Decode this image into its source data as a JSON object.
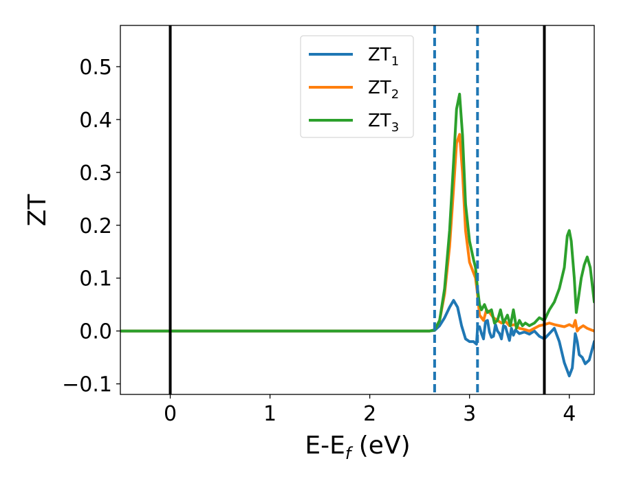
{
  "chart_data": {
    "type": "line",
    "xlabel": {
      "main": "E-E",
      "sub": "f",
      "unit": " (eV)"
    },
    "ylabel": "ZT",
    "xlim": [
      -0.5,
      4.25
    ],
    "ylim": [
      -0.12,
      0.578
    ],
    "xticks": [
      0,
      1,
      2,
      3,
      4
    ],
    "xtick_labels": [
      "0",
      "1",
      "2",
      "3",
      "4"
    ],
    "yticks": [
      -0.1,
      0.0,
      0.1,
      0.2,
      0.3,
      0.4,
      0.5
    ],
    "ytick_labels": [
      "−0.1",
      "0.0",
      "0.1",
      "0.2",
      "0.3",
      "0.4",
      "0.5"
    ],
    "legend_position": "top-center",
    "vlines": [
      {
        "x": 0.0,
        "style": "solid",
        "color": "#000000"
      },
      {
        "x": 3.75,
        "style": "solid",
        "color": "#000000"
      },
      {
        "x": 2.65,
        "style": "dashed",
        "color": "#1f77b4"
      },
      {
        "x": 3.08,
        "style": "dashed",
        "color": "#1f77b4"
      }
    ],
    "series": [
      {
        "name": "ZT",
        "sub": "1",
        "color": "#1f77b4",
        "x": [
          -0.5,
          2.6,
          2.65,
          2.7,
          2.75,
          2.8,
          2.84,
          2.88,
          2.92,
          2.96,
          3.0,
          3.04,
          3.07,
          3.08,
          3.1,
          3.12,
          3.14,
          3.16,
          3.18,
          3.2,
          3.22,
          3.24,
          3.26,
          3.28,
          3.3,
          3.32,
          3.34,
          3.36,
          3.38,
          3.4,
          3.42,
          3.44,
          3.46,
          3.5,
          3.55,
          3.6,
          3.65,
          3.7,
          3.75,
          3.8,
          3.85,
          3.9,
          3.95,
          4.0,
          4.03,
          4.06,
          4.08,
          4.1,
          4.13,
          4.16,
          4.2,
          4.25
        ],
        "y": [
          0.0,
          0.0,
          0.001,
          0.01,
          0.025,
          0.045,
          0.058,
          0.045,
          0.01,
          -0.015,
          -0.02,
          -0.02,
          -0.025,
          0.005,
          0.008,
          -0.005,
          -0.015,
          0.018,
          0.02,
          -0.002,
          -0.012,
          -0.01,
          0.012,
          0.0,
          -0.005,
          -0.015,
          0.01,
          0.008,
          -0.005,
          -0.018,
          0.005,
          -0.008,
          0.002,
          -0.005,
          -0.002,
          -0.006,
          0.0,
          -0.01,
          -0.015,
          -0.005,
          0.005,
          -0.02,
          -0.06,
          -0.085,
          -0.07,
          -0.005,
          -0.02,
          -0.045,
          -0.05,
          -0.062,
          -0.055,
          -0.02
        ]
      },
      {
        "name": "ZT",
        "sub": "2",
        "color": "#ff7f0e",
        "x": [
          -0.5,
          2.6,
          2.65,
          2.7,
          2.75,
          2.8,
          2.84,
          2.87,
          2.9,
          2.93,
          2.96,
          3.0,
          3.04,
          3.06,
          3.08,
          3.1,
          3.12,
          3.14,
          3.17,
          3.2,
          3.24,
          3.28,
          3.32,
          3.36,
          3.4,
          3.45,
          3.5,
          3.55,
          3.6,
          3.65,
          3.7,
          3.75,
          3.8,
          3.85,
          3.9,
          3.95,
          4.0,
          4.04,
          4.06,
          4.08,
          4.1,
          4.14,
          4.18,
          4.22,
          4.25
        ],
        "y": [
          0.0,
          0.0,
          0.002,
          0.02,
          0.07,
          0.16,
          0.27,
          0.355,
          0.372,
          0.3,
          0.19,
          0.13,
          0.11,
          0.1,
          0.07,
          0.03,
          0.025,
          0.02,
          0.04,
          0.035,
          0.025,
          0.02,
          0.015,
          0.018,
          0.01,
          0.012,
          0.005,
          0.003,
          0.0,
          0.005,
          0.01,
          0.012,
          0.015,
          0.012,
          0.01,
          0.008,
          0.012,
          0.008,
          0.02,
          0.0,
          0.005,
          0.01,
          0.005,
          0.002,
          0.0
        ]
      },
      {
        "name": "ZT",
        "sub": "3",
        "color": "#2ca02c",
        "x": [
          -0.5,
          2.6,
          2.65,
          2.7,
          2.75,
          2.8,
          2.84,
          2.87,
          2.9,
          2.93,
          2.96,
          3.0,
          3.04,
          3.06,
          3.08,
          3.1,
          3.12,
          3.15,
          3.18,
          3.22,
          3.25,
          3.28,
          3.31,
          3.34,
          3.38,
          3.41,
          3.44,
          3.47,
          3.5,
          3.53,
          3.56,
          3.6,
          3.65,
          3.7,
          3.75,
          3.8,
          3.85,
          3.9,
          3.95,
          3.98,
          4.0,
          4.02,
          4.05,
          4.07,
          4.09,
          4.12,
          4.15,
          4.18,
          4.21,
          4.25
        ],
        "y": [
          0.0,
          0.0,
          0.002,
          0.02,
          0.08,
          0.19,
          0.32,
          0.42,
          0.448,
          0.37,
          0.24,
          0.17,
          0.135,
          0.12,
          0.08,
          0.05,
          0.04,
          0.05,
          0.035,
          0.04,
          0.015,
          0.02,
          0.04,
          0.015,
          0.03,
          0.01,
          0.04,
          0.005,
          0.02,
          0.01,
          0.015,
          0.01,
          0.015,
          0.025,
          0.02,
          0.04,
          0.055,
          0.08,
          0.12,
          0.18,
          0.19,
          0.17,
          0.1,
          0.035,
          0.06,
          0.1,
          0.125,
          0.14,
          0.12,
          0.055
        ]
      }
    ]
  }
}
